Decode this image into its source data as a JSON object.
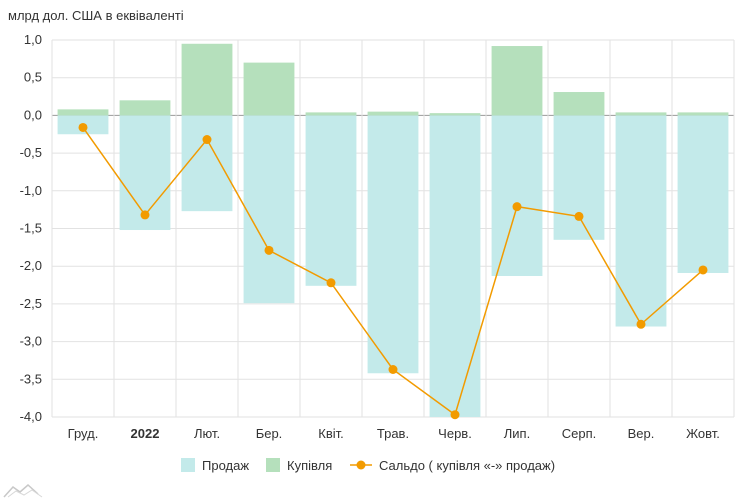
{
  "chart_data": {
    "type": "bar",
    "ylabel": "млрд дол. США в еквіваленті",
    "ylim": [
      -4.0,
      1.0
    ],
    "yticks": [
      "1,0",
      "0,5",
      "0,0",
      "-0,5",
      "-1,0",
      "-1,5",
      "-2,0",
      "-2,5",
      "-3,0",
      "-3,5",
      "-4,0"
    ],
    "categories": [
      "Груд.",
      "2022",
      "Лют.",
      "Бер.",
      "Квіт.",
      "Трав.",
      "Черв.",
      "Лип.",
      "Серп.",
      "Вер.",
      "Жовт."
    ],
    "bold_categories": [
      "2022"
    ],
    "grid": true,
    "legend_position": "bottom",
    "series": [
      {
        "name": "Продаж",
        "type": "bar",
        "color": "#c3eaea",
        "values": [
          -0.25,
          -1.52,
          -1.27,
          -2.49,
          -2.26,
          -3.42,
          -4.0,
          -2.13,
          -1.65,
          -2.8,
          -2.09
        ]
      },
      {
        "name": "Купівля",
        "type": "bar",
        "color": "#b5e0bc",
        "values": [
          0.08,
          0.2,
          0.95,
          0.7,
          0.04,
          0.05,
          0.03,
          0.92,
          0.31,
          0.04,
          0.04
        ]
      },
      {
        "name": "Сальдо ( купівля «-» продаж)",
        "type": "line",
        "color": "#f29b00",
        "values": [
          -0.16,
          -1.32,
          -0.32,
          -1.79,
          -2.22,
          -3.37,
          -3.97,
          -1.21,
          -1.34,
          -2.77,
          -2.05
        ]
      }
    ]
  }
}
